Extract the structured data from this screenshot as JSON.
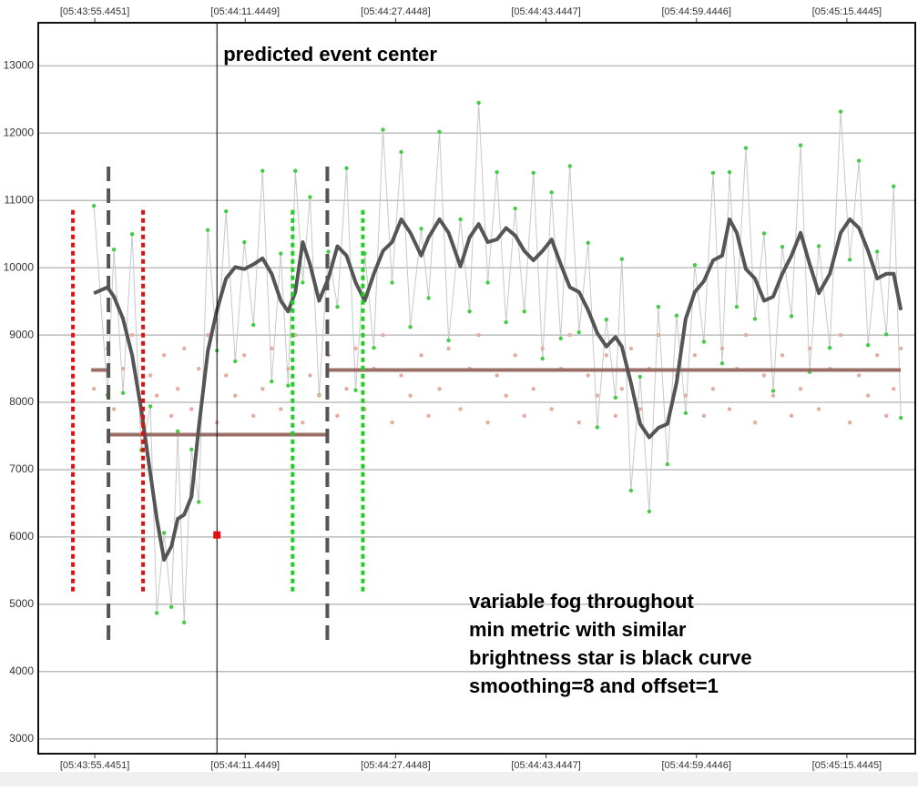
{
  "chart_data": {
    "type": "line",
    "xlim": [
      20629.43,
      20722.72
    ],
    "ylim": [
      2780,
      13640
    ],
    "xticks": [
      {
        "value": 20635.4451,
        "label": "[05:43:55.4451]"
      },
      {
        "value": 20651.4449,
        "label": "[05:44:11.4449]"
      },
      {
        "value": 20667.4448,
        "label": "[05:44:27.4448]"
      },
      {
        "value": 20683.4447,
        "label": "[05:44:43.4447]"
      },
      {
        "value": 20699.4446,
        "label": "[05:44:59.4446]"
      },
      {
        "value": 20715.4445,
        "label": "[05:45:15.4445]"
      }
    ],
    "yticks": [
      3000,
      4000,
      5000,
      6000,
      7000,
      8000,
      9000,
      10000,
      11000,
      12000,
      13000
    ],
    "grid": true,
    "x": [
      20635.35,
      20636.8,
      20637.48,
      20638.45,
      20639.42,
      20640.39,
      20641.36,
      20642.04,
      20642.82,
      20643.59,
      20644.27,
      20644.95,
      20645.73,
      20646.5,
      20647.47,
      20648.44,
      20649.41,
      20650.38,
      20651.35,
      20652.32,
      20653.29,
      20654.26,
      20655.23,
      20656.01,
      20656.78,
      20657.56,
      20658.34,
      20659.31,
      20660.28,
      20661.25,
      20662.22,
      20663.19,
      20664.16,
      20665.13,
      20666.1,
      20667.07,
      20668.04,
      20669.01,
      20670.17,
      20670.95,
      20672.11,
      20673.08,
      20674.34,
      20675.31,
      20676.28,
      20677.25,
      20678.22,
      20679.19,
      20680.16,
      20681.13,
      20682.1,
      20683.07,
      20684.04,
      20685.01,
      20685.98,
      20686.95,
      20687.92,
      20688.89,
      20689.86,
      20690.83,
      20691.51,
      20692.48,
      20693.45,
      20694.42,
      20695.39,
      20696.36,
      20697.33,
      20698.3,
      20699.27,
      20700.24,
      20701.21,
      20702.18,
      20702.96,
      20703.73,
      20704.7,
      20705.67,
      20706.64,
      20707.61,
      20708.58,
      20709.55,
      20710.52,
      20711.49,
      20712.46,
      20713.63,
      20714.79,
      20715.76,
      20716.73,
      20717.7,
      20718.67,
      20719.64,
      20720.42,
      20721.19
    ],
    "series": [
      {
        "color": "#44cc44",
        "line_color": "#c8c8c8",
        "style": "points-line",
        "values": [
          10920,
          8110,
          10270,
          8140,
          10500,
          7290,
          7940,
          4870,
          6060,
          4960,
          7570,
          4730,
          7300,
          6520,
          10560,
          8770,
          10840,
          8610,
          10380,
          9150,
          11440,
          8310,
          10210,
          8250,
          11440,
          9780,
          11050,
          8110,
          10240,
          9420,
          11480,
          8180,
          10210,
          8810,
          12050,
          9780,
          11720,
          9120,
          10580,
          9550,
          12020,
          8920,
          10720,
          9350,
          12450,
          9780,
          11420,
          9190,
          10880,
          9350,
          11410,
          8650,
          11120,
          8950,
          11510,
          9040,
          10370,
          7630,
          9230,
          8070,
          10130,
          6690,
          8380,
          6380,
          9420,
          7080,
          9290,
          7840,
          10040,
          8900,
          11410,
          8580,
          11420,
          9420,
          11780,
          9240,
          10510,
          8170,
          10310,
          9280,
          11820,
          8450,
          10320,
          8810,
          12320,
          10120,
          11590,
          8850,
          10240,
          9010,
          11210,
          7770
        ]
      },
      {
        "color": "#e3ada0",
        "style": "points",
        "values": [
          8200,
          8800,
          7900,
          8500,
          9000,
          7700,
          8400,
          8100,
          8700,
          7800,
          8200,
          8800,
          7900,
          8500,
          9000,
          7700,
          8400,
          8100,
          8700,
          7800,
          8200,
          8800,
          7900,
          8500,
          9000,
          7700,
          8400,
          8100,
          8700,
          7800,
          8200,
          8800,
          7900,
          8500,
          9000,
          7700,
          8400,
          8100,
          8700,
          7800,
          8200,
          8800,
          7900,
          8500,
          9000,
          7700,
          8400,
          8100,
          8700,
          7800,
          8200,
          8800,
          7900,
          8500,
          9000,
          7700,
          8400,
          8100,
          8700,
          7800,
          8200,
          8800,
          7900,
          8500,
          9000,
          7700,
          8400,
          8100,
          8700,
          7800,
          8200,
          8800,
          7900,
          8500,
          9000,
          7700,
          8400,
          8100,
          8700,
          7800,
          8200,
          8800,
          7900,
          8500,
          9000,
          7700,
          8400,
          8100,
          8700,
          7800,
          8200,
          8800
        ]
      },
      {
        "color": "#555555",
        "style": "line",
        "values": [
          9620,
          9710,
          9570,
          9240,
          8700,
          7890,
          6940,
          6270,
          5660,
          5860,
          6270,
          6330,
          6600,
          7620,
          8760,
          9370,
          9840,
          10010,
          9980,
          10050,
          10140,
          9910,
          9510,
          9350,
          9640,
          10380,
          10050,
          9510,
          9840,
          10320,
          10180,
          9780,
          9510,
          9910,
          10250,
          10380,
          10720,
          10520,
          10180,
          10450,
          10720,
          10520,
          10020,
          10450,
          10650,
          10380,
          10420,
          10590,
          10480,
          10250,
          10110,
          10250,
          10420,
          10050,
          9710,
          9640,
          9370,
          9030,
          8830,
          8970,
          8830,
          8290,
          7680,
          7480,
          7620,
          7680,
          8290,
          9240,
          9640,
          9800,
          10110,
          10180,
          10720,
          10520,
          9980,
          9840,
          9510,
          9570,
          9910,
          10180,
          10520,
          10050,
          9620,
          9910,
          10520,
          10720,
          10590,
          10250,
          9840,
          9910,
          9910,
          9370
        ]
      }
    ],
    "levels": [
      {
        "x": [
          20635.06,
          20636.9
        ],
        "value": 8480,
        "color": "#9a6e66"
      },
      {
        "x": [
          20636.9,
          20660.18
        ],
        "value": 7520,
        "color": "#9a6e66"
      },
      {
        "x": [
          20660.18,
          20721.18
        ],
        "value": 8480,
        "color": "#9a6e66"
      }
    ],
    "vlines": [
      {
        "x": 20633.12,
        "y": [
          5190,
          10890
        ],
        "color": "#dd1111",
        "style": "dotted"
      },
      {
        "x": 20640.58,
        "y": [
          5190,
          10890
        ],
        "color": "#dd1111",
        "style": "dotted"
      },
      {
        "x": 20636.9,
        "y": [
          4470,
          11610
        ],
        "color": "#555555",
        "style": "dashed"
      },
      {
        "x": 20660.18,
        "y": [
          4470,
          11610
        ],
        "color": "#555555",
        "style": "dashed"
      },
      {
        "x": 20656.49,
        "y": [
          5190,
          10890
        ],
        "color": "#22cc22",
        "style": "dotted"
      },
      {
        "x": 20663.96,
        "y": [
          5190,
          10890
        ],
        "color": "#22cc22",
        "style": "dotted"
      }
    ],
    "event": {
      "x": 20648.44,
      "label": "predicted event center",
      "marker_y": 6030,
      "marker_color": "#dd1111"
    },
    "note": [
      "variable fog throughout",
      "min metric with similar",
      "brightness star is black curve",
      "smoothing=8 and offset=1"
    ]
  }
}
